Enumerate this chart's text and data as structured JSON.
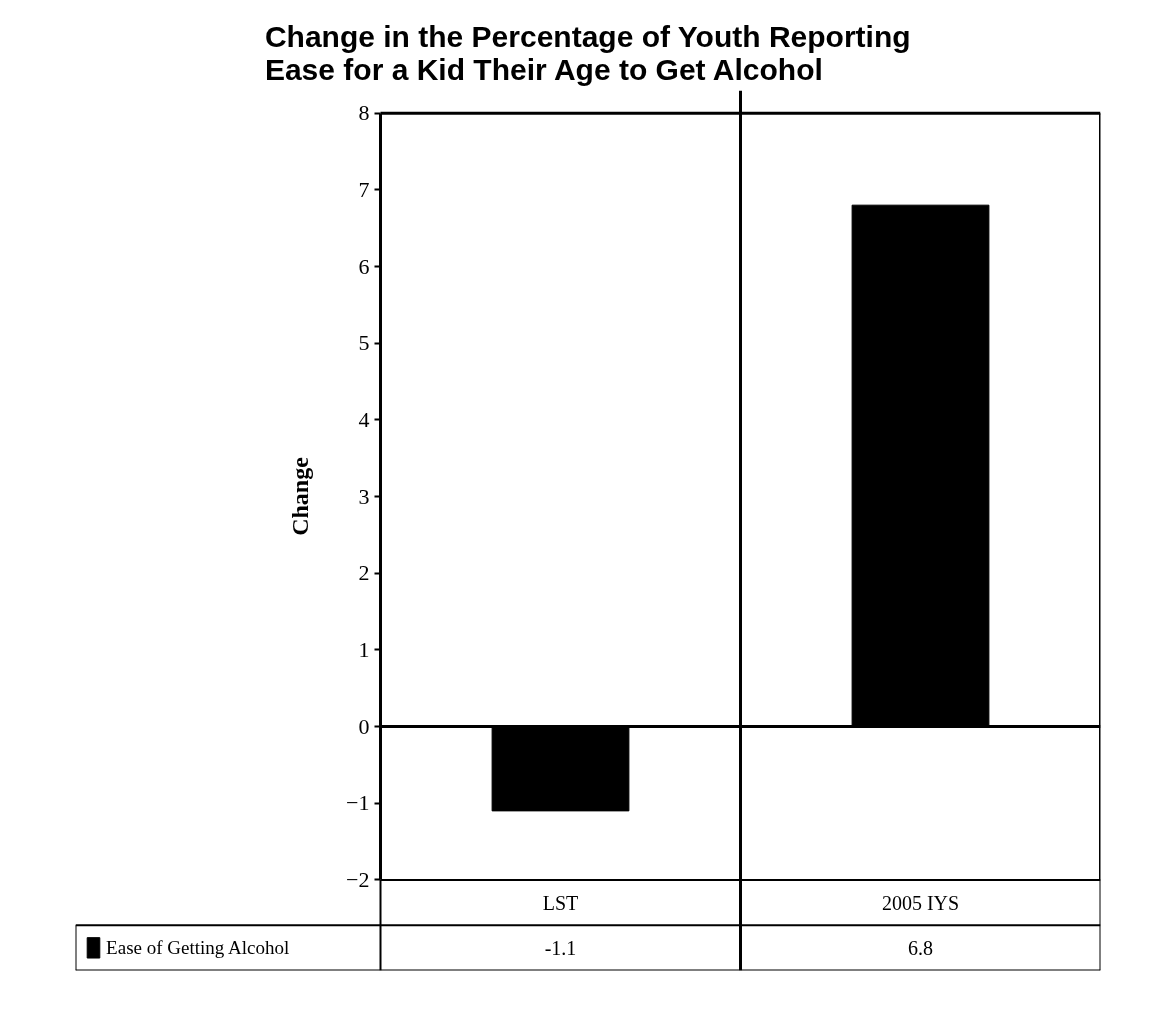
{
  "chart_data": {
    "type": "bar",
    "title": "Change in the Percentage of Youth Reporting\nEase for a Kid Their Age to Get Alcohol",
    "ylabel": "Change",
    "categories": [
      "LST",
      "2005 IYS"
    ],
    "series": [
      {
        "name": "Ease of Getting Alcohol",
        "color": "#000000",
        "values": [
          -1.1,
          6.8
        ]
      }
    ],
    "ylim": [
      -2,
      8
    ],
    "yticks": [
      -2,
      -1,
      0,
      1,
      2,
      3,
      4,
      5,
      6,
      7,
      8
    ],
    "data_labels": true,
    "legend": "bottom"
  }
}
